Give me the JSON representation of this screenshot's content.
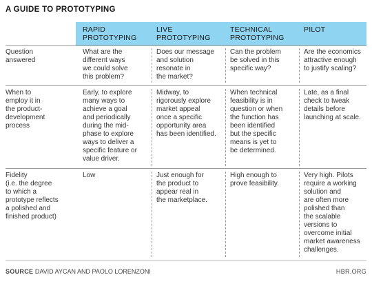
{
  "title": "A GUIDE TO PROTOTYPING",
  "columns": [
    "RAPID\nPROTOTYPING",
    "LIVE\nPROTOTYPING",
    "TECHNICAL\nPROTOTYPING",
    "PILOT"
  ],
  "rows": [
    {
      "label": "Question\nanswered",
      "cells": [
        "What are the\ndifferent ways\nwe could solve\nthis problem?",
        "Does our message\nand solution\nresonate in\nthe market?",
        "Can the problem\nbe solved in this\nspecific way?",
        "Are the economics\nattractive enough\nto justify scaling?"
      ]
    },
    {
      "label": "When to\nemploy it in\nthe product-\ndevelopment\nprocess",
      "cells": [
        "Early, to explore\nmany ways to\nachieve a goal\nand periodically\nduring the mid-\nphase to explore\nways to deliver a\nspecific feature or\nvalue driver.",
        "Midway, to\nrigorously explore\nmarket appeal\nonce a specific\nopportunity area\nhas been identified.",
        "When technical\nfeasibility is in\nquestion or when\nthe function has\nbeen identified\nbut the specific\nmeans is yet to\nbe determined.",
        "Late, as a final\ncheck to tweak\ndetails before\nlaunching at scale."
      ]
    },
    {
      "label": "Fidelity\n(i.e. the degree\nto which a\nprototype reflects\na polished and\nfinished product)",
      "cells": [
        "Low",
        "Just enough for\nthe product to\nappear real in\nthe marketplace.",
        "High enough to\nprove feasibility.",
        "Very high. Pilots\nrequire a working\nsolution and\nare often more\npolished than\nthe scalable\nversions to\novercome initial\nmarket awareness\nchallenges."
      ]
    }
  ],
  "footer": {
    "source_label": "SOURCE",
    "source_text": "DAVID AYCAN AND PAOLO LORENZONI",
    "credit": "HBR.ORG"
  }
}
